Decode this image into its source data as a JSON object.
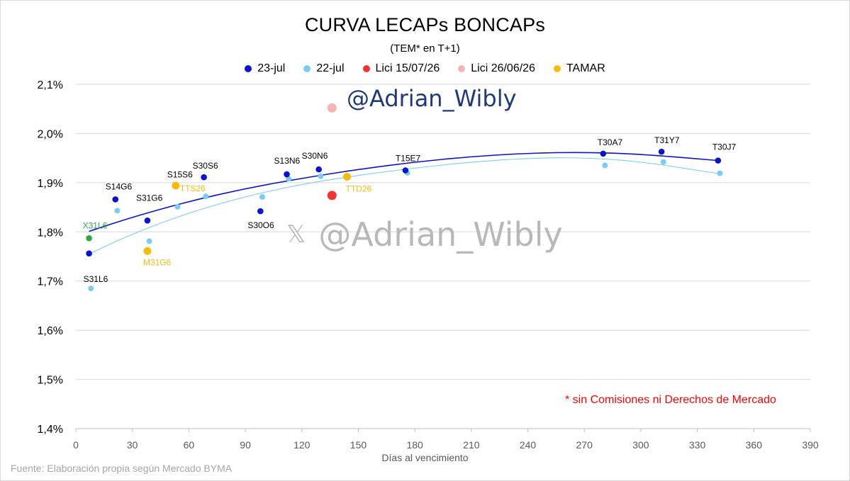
{
  "chart_data": {
    "type": "scatter",
    "title": "CURVA LECAPs BONCAPs",
    "subtitle": "(TEM* en T+1)",
    "xlabel": "Días al vencimiento",
    "ylabel": "",
    "xlim": [
      0,
      390
    ],
    "ylim": [
      1.4,
      2.1
    ],
    "x_ticks": [
      0,
      30,
      60,
      90,
      120,
      150,
      180,
      210,
      240,
      270,
      300,
      330,
      360,
      390
    ],
    "y_ticks": [
      {
        "value": 1.4,
        "label": "1,4%"
      },
      {
        "value": 1.5,
        "label": "1,5%"
      },
      {
        "value": 1.6,
        "label": "1,6%"
      },
      {
        "value": 1.7,
        "label": "1,7%"
      },
      {
        "value": 1.8,
        "label": "1,8%"
      },
      {
        "value": 1.9,
        "label": "1,9%"
      },
      {
        "value": 2.0,
        "label": "2,0%"
      },
      {
        "value": 2.1,
        "label": "2,1%"
      }
    ],
    "grid": "horizontal",
    "legend_placement": "top-center",
    "series": [
      {
        "name": "23-jul",
        "color": "#0a12d6",
        "points": [
          {
            "x": 7,
            "y": 1.756,
            "label": "S31L6"
          },
          {
            "x": 21,
            "y": 1.866,
            "label": "S14G6"
          },
          {
            "x": 38,
            "y": 1.823,
            "label": "S31G6"
          },
          {
            "x": 53,
            "y": 1.893,
            "label": "S15S6"
          },
          {
            "x": 68,
            "y": 1.911,
            "label": "S30S6"
          },
          {
            "x": 98,
            "y": 1.842,
            "label": "S30O6"
          },
          {
            "x": 112,
            "y": 1.917,
            "label": "S13N6"
          },
          {
            "x": 129,
            "y": 1.927,
            "label": "S30N6"
          },
          {
            "x": 175,
            "y": 1.925,
            "label": "T15E7"
          },
          {
            "x": 280,
            "y": 1.959,
            "label": "T30A7"
          },
          {
            "x": 311,
            "y": 1.963,
            "label": "T31Y7"
          },
          {
            "x": 341,
            "y": 1.945,
            "label": "T30J7"
          }
        ]
      },
      {
        "name": "22-jul",
        "color": "#79cdf2",
        "points": [
          {
            "x": 8,
            "y": 1.685
          },
          {
            "x": 22,
            "y": 1.843
          },
          {
            "x": 39,
            "y": 1.781
          },
          {
            "x": 54,
            "y": 1.851
          },
          {
            "x": 69,
            "y": 1.872
          },
          {
            "x": 99,
            "y": 1.871
          },
          {
            "x": 113,
            "y": 1.908
          },
          {
            "x": 130,
            "y": 1.913
          },
          {
            "x": 176,
            "y": 1.92
          },
          {
            "x": 281,
            "y": 1.935
          },
          {
            "x": 312,
            "y": 1.942
          },
          {
            "x": 342,
            "y": 1.919
          }
        ]
      },
      {
        "name": "Lici 15/07/26",
        "color": "#f03333",
        "points": [
          {
            "x": 136,
            "y": 1.874
          }
        ]
      },
      {
        "name": "Lici 26/06/26",
        "color": "#f5b3b3",
        "points": [
          {
            "x": 136,
            "y": 2.052
          }
        ]
      },
      {
        "name": "TAMAR",
        "color": "#f7bb0c",
        "points": [
          {
            "x": 53,
            "y": 1.894,
            "label": "TTS26"
          },
          {
            "x": 38,
            "y": 1.761,
            "label": "M31G6"
          },
          {
            "x": 144,
            "y": 1.912,
            "label": "TTD26"
          }
        ]
      },
      {
        "name": "",
        "color": "#2faa3a",
        "points": [
          {
            "x": 7,
            "y": 1.787,
            "label": "X31L6"
          }
        ]
      }
    ],
    "trendlines": [
      {
        "series": "23-jul",
        "color": "#0a12d6",
        "points": [
          [
            7,
            1.801
          ],
          [
            30,
            1.83
          ],
          [
            60,
            1.862
          ],
          [
            90,
            1.888
          ],
          [
            120,
            1.909
          ],
          [
            150,
            1.927
          ],
          [
            180,
            1.942
          ],
          [
            210,
            1.953
          ],
          [
            240,
            1.96
          ],
          [
            270,
            1.962
          ],
          [
            300,
            1.958
          ],
          [
            341,
            1.945
          ]
        ]
      },
      {
        "series": "22-jul",
        "color": "#79cdf2",
        "points": [
          [
            7,
            1.755
          ],
          [
            30,
            1.796
          ],
          [
            60,
            1.839
          ],
          [
            90,
            1.872
          ],
          [
            120,
            1.897
          ],
          [
            150,
            1.915
          ],
          [
            180,
            1.93
          ],
          [
            210,
            1.942
          ],
          [
            240,
            1.95
          ],
          [
            270,
            1.951
          ],
          [
            300,
            1.943
          ],
          [
            342,
            1.918
          ]
        ]
      }
    ]
  },
  "text": {
    "title": "CURVA LECAPs BONCAPs",
    "subtitle": "(TEM* en T+1)",
    "watermark_top": "@Adrian_Wibly",
    "watermark_mid": "@Adrian_Wibly",
    "watermark_x": "𝕏",
    "note": "* sin Comisiones ni Derechos de Mercado",
    "source": "Fuente: Elaboración propia según Mercado BYMA",
    "xlabel": "Días al vencimiento"
  },
  "legend": [
    {
      "label": "23-jul",
      "color": "#0a12d6"
    },
    {
      "label": "22-jul",
      "color": "#79cdf2"
    },
    {
      "label": "Lici 15/07/26",
      "color": "#f03333"
    },
    {
      "label": "Lici 26/06/26",
      "color": "#f5b3b3"
    },
    {
      "label": "TAMAR",
      "color": "#f7bb0c"
    }
  ]
}
